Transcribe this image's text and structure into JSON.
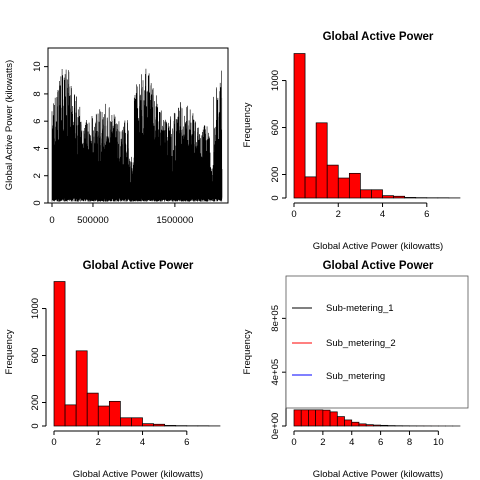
{
  "chart_data": [
    {
      "type": "line",
      "title": "",
      "xlabel": "",
      "ylabel": "Global Active Power (kilowatts)",
      "xlim": [
        0,
        2075259
      ],
      "ylim": [
        0,
        11
      ],
      "x_ticks": [
        0,
        500000,
        1500000
      ],
      "x_tick_labels": [
        "0",
        "500000",
        "1500000"
      ],
      "y_ticks": [
        0,
        2,
        4,
        6,
        8,
        10
      ],
      "y_tick_labels": [
        "0",
        "2",
        "4",
        "6",
        "8",
        "10"
      ],
      "series_color": "#000000",
      "grid": false
    },
    {
      "type": "bar",
      "title": "Global Active Power",
      "xlabel": "Global Active Power (kilowatts)",
      "ylabel": "Frequency",
      "bin_width": 0.5,
      "bin_start": 0,
      "values": [
        1230,
        180,
        640,
        280,
        170,
        210,
        70,
        70,
        20,
        15,
        5,
        3,
        2,
        2,
        1
      ],
      "xlim": [
        0,
        7.5
      ],
      "ylim": [
        0,
        1260
      ],
      "x_ticks": [
        0,
        2,
        4,
        6
      ],
      "x_tick_labels": [
        "0",
        "2",
        "4",
        "6"
      ],
      "y_ticks": [
        0,
        200,
        600,
        1000
      ],
      "y_tick_labels": [
        "0",
        "200",
        "600",
        "1000"
      ],
      "bar_color": "#ff0000",
      "grid": false
    },
    {
      "type": "bar",
      "title": "Global Active Power",
      "xlabel": "Global Active Power (kilowatts)",
      "ylabel": "Frequency",
      "bin_width": 0.5,
      "bin_start": 0,
      "values": [
        1230,
        180,
        640,
        280,
        170,
        210,
        70,
        70,
        20,
        15,
        5,
        3,
        2,
        2,
        1
      ],
      "xlim": [
        0,
        7.5
      ],
      "ylim": [
        0,
        1260
      ],
      "x_ticks": [
        0,
        2,
        4,
        6
      ],
      "x_tick_labels": [
        "0",
        "2",
        "4",
        "6"
      ],
      "y_ticks": [
        0,
        200,
        600,
        1000
      ],
      "y_tick_labels": [
        "0",
        "200",
        "600",
        "1000"
      ],
      "bar_color": "#ff0000",
      "grid": false
    },
    {
      "type": "bar",
      "title": "Global Active Power",
      "xlabel": "Global Active Power (kilowatts)",
      "ylabel": "Frequency",
      "bin_width": 0.5,
      "bin_start": 0,
      "values": [
        120000,
        120000,
        120000,
        120000,
        118000,
        105000,
        70000,
        45000,
        28000,
        16000,
        10000,
        7000,
        5000,
        3000,
        2000,
        1500,
        1000,
        800,
        600,
        400,
        300,
        200,
        100
      ],
      "xlim": [
        0,
        11.5
      ],
      "ylim": [
        0,
        1100000
      ],
      "x_ticks": [
        0,
        2,
        4,
        6,
        8,
        10
      ],
      "x_tick_labels": [
        "0",
        "2",
        "4",
        "6",
        "8",
        "10"
      ],
      "y_ticks": [
        0,
        400000,
        800000
      ],
      "y_tick_labels": [
        "0e+00",
        "4e+05",
        "8e+05"
      ],
      "bar_color": "#ff0000",
      "legend": {
        "placement": "top-right",
        "entries": [
          {
            "label": "Sub-metering_1",
            "color": "#000000"
          },
          {
            "label": "Sub_metering_2",
            "color": "#ff0000"
          },
          {
            "label": "Sub_metering",
            "color": "#0000ff"
          }
        ]
      },
      "grid": false
    }
  ]
}
